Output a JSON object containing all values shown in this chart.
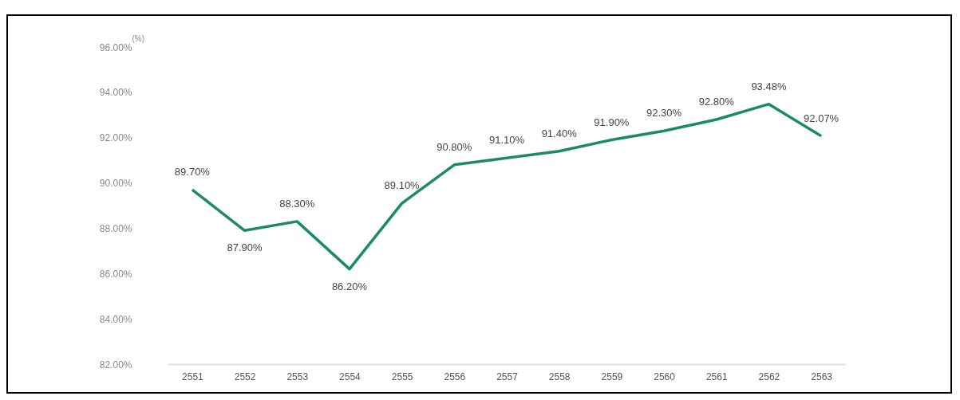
{
  "chart_data": {
    "type": "line",
    "ylabel": "(%)",
    "categories": [
      "2551",
      "2552",
      "2553",
      "2554",
      "2555",
      "2556",
      "2557",
      "2558",
      "2559",
      "2560",
      "2561",
      "2562",
      "2563"
    ],
    "series": [
      {
        "color": "#1b8a6b",
        "values": [
          89.7,
          87.9,
          88.3,
          86.2,
          89.1,
          90.8,
          91.1,
          91.4,
          91.9,
          92.3,
          92.8,
          93.48,
          92.07
        ],
        "value_labels": [
          "89.70%",
          "87.90%",
          "88.30%",
          "86.20%",
          "89.10%",
          "90.80%",
          "91.10%",
          "91.40%",
          "91.90%",
          "92.30%",
          "92.80%",
          "93.48%",
          "92.07%"
        ]
      }
    ],
    "ylim": [
      82,
      96
    ],
    "yticks": [
      {
        "value": 82,
        "label": "82.00%"
      },
      {
        "value": 84,
        "label": "84.00%"
      },
      {
        "value": 86,
        "label": "86.00%"
      },
      {
        "value": 88,
        "label": "88.00%"
      },
      {
        "value": 90,
        "label": "90.00%"
      },
      {
        "value": 92,
        "label": "92.00%"
      },
      {
        "value": 94,
        "label": "94.00%"
      },
      {
        "value": 96,
        "label": "96.00%"
      }
    ],
    "grid": false,
    "marker": "none",
    "line_style": "solid",
    "legend": false
  }
}
